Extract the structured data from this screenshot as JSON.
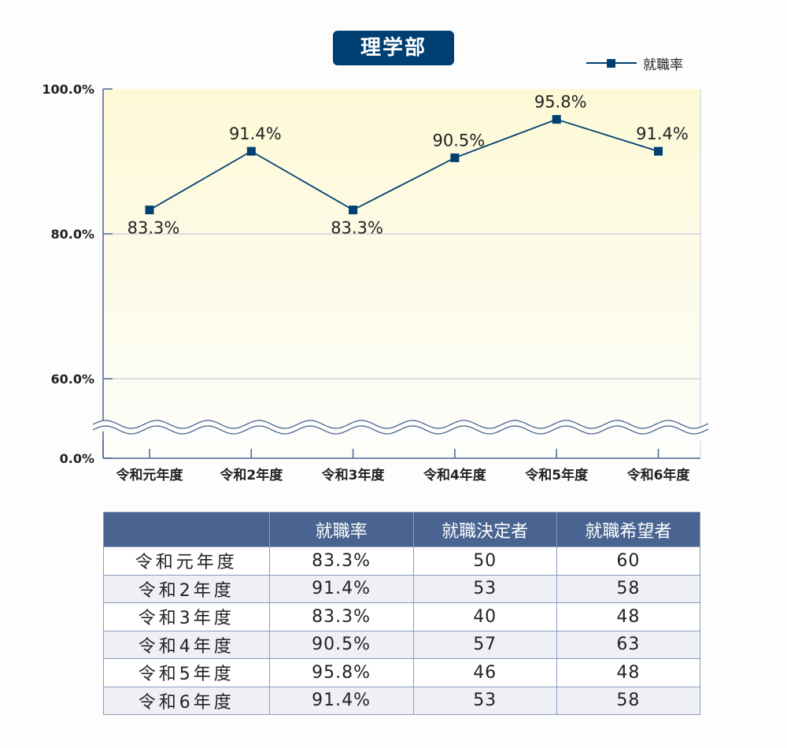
{
  "title": "理学部",
  "legend": {
    "label": "就職率",
    "color": "#003f72"
  },
  "chart_data": {
    "type": "line",
    "title": "理学部",
    "categories": [
      "令和元年度",
      "令和2年度",
      "令和3年度",
      "令和4年度",
      "令和5年度",
      "令和6年度"
    ],
    "series": [
      {
        "name": "就職率",
        "values": [
          83.3,
          91.4,
          83.3,
          90.5,
          95.8,
          91.4
        ]
      }
    ],
    "data_labels": [
      "83.3%",
      "91.4%",
      "83.3%",
      "90.5%",
      "95.8%",
      "91.4%"
    ],
    "y_ticks": [
      "100.0%",
      "80.0%",
      "60.0%",
      "0.0%"
    ],
    "y_tick_values": [
      100,
      80,
      60,
      0
    ],
    "ylim": [
      0,
      100
    ],
    "axis_break": "between 0% and 60%",
    "grid": true,
    "legend_position": "top-right"
  },
  "table": {
    "headers": [
      "",
      "就職率",
      "就職決定者",
      "就職希望者"
    ],
    "rows": [
      [
        "令和元年度",
        "83.3%",
        "50",
        "60"
      ],
      [
        "令和2年度",
        "91.4%",
        "53",
        "58"
      ],
      [
        "令和3年度",
        "83.3%",
        "40",
        "48"
      ],
      [
        "令和4年度",
        "90.5%",
        "57",
        "63"
      ],
      [
        "令和5年度",
        "95.8%",
        "46",
        "48"
      ],
      [
        "令和6年度",
        "91.4%",
        "53",
        "58"
      ]
    ]
  }
}
